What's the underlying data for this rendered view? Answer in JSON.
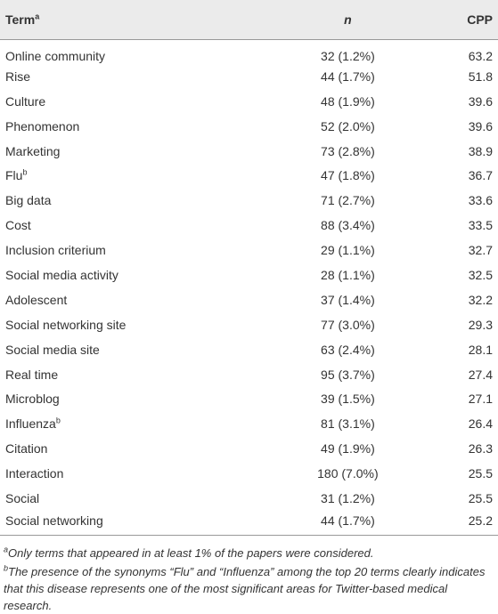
{
  "table": {
    "header": [
      {
        "text": "Term",
        "note": "a"
      },
      {
        "text": "n"
      },
      {
        "text": "CPP"
      }
    ],
    "rows": [
      {
        "term": "Online community",
        "n": "32 (1.2%)",
        "cpp": 63.2
      },
      {
        "term": "Rise",
        "n": "44 (1.7%)",
        "cpp": 51.8
      },
      {
        "term": "Culture",
        "n": "48 (1.9%)",
        "cpp": 39.6
      },
      {
        "term": "Phenomenon",
        "n": "52 (2.0%)",
        "cpp": 39.6
      },
      {
        "term": "Marketing",
        "n": "73 (2.8%)",
        "cpp": 38.9
      },
      {
        "term": "Flu",
        "note": "b",
        "n": "47 (1.8%)",
        "cpp": 36.7
      },
      {
        "term": "Big data",
        "n": "71 (2.7%)",
        "cpp": 33.6
      },
      {
        "term": "Cost",
        "n": "88 (3.4%)",
        "cpp": 33.5
      },
      {
        "term": "Inclusion criterium",
        "n": "29 (1.1%)",
        "cpp": 32.7
      },
      {
        "term": "Social media activity",
        "n": "28 (1.1%)",
        "cpp": 32.5
      },
      {
        "term": "Adolescent",
        "n": "37 (1.4%)",
        "cpp": 32.2
      },
      {
        "term": "Social networking site",
        "n": "77 (3.0%)",
        "cpp": 29.3
      },
      {
        "term": "Social media site",
        "n": "63 (2.4%)",
        "cpp": 28.1
      },
      {
        "term": "Real time",
        "n": "95 (3.7%)",
        "cpp": 27.4
      },
      {
        "term": "Microblog",
        "n": "39 (1.5%)",
        "cpp": 27.1
      },
      {
        "term": "Influenza",
        "note": "b",
        "n": "81 (3.1%)",
        "cpp": 26.4
      },
      {
        "term": "Citation",
        "n": "49 (1.9%)",
        "cpp": 26.3
      },
      {
        "term": "Interaction",
        "n": "180 (7.0%)",
        "cpp": 25.5
      },
      {
        "term": "Social",
        "n": "31 (1.2%)",
        "cpp": 25.5
      },
      {
        "term": "Social networking",
        "n": "44 (1.7%)",
        "cpp": 25.2
      }
    ],
    "footnotes": [
      {
        "mark": "a",
        "text": "Only terms that appeared in at least 1% of the papers were considered."
      },
      {
        "mark": "b",
        "text": "The presence of the synonyms “Flu” and “Influenza” among the top 20 terms clearly indicates that this disease represents one of the most significant areas for Twitter-based medical research."
      }
    ]
  }
}
